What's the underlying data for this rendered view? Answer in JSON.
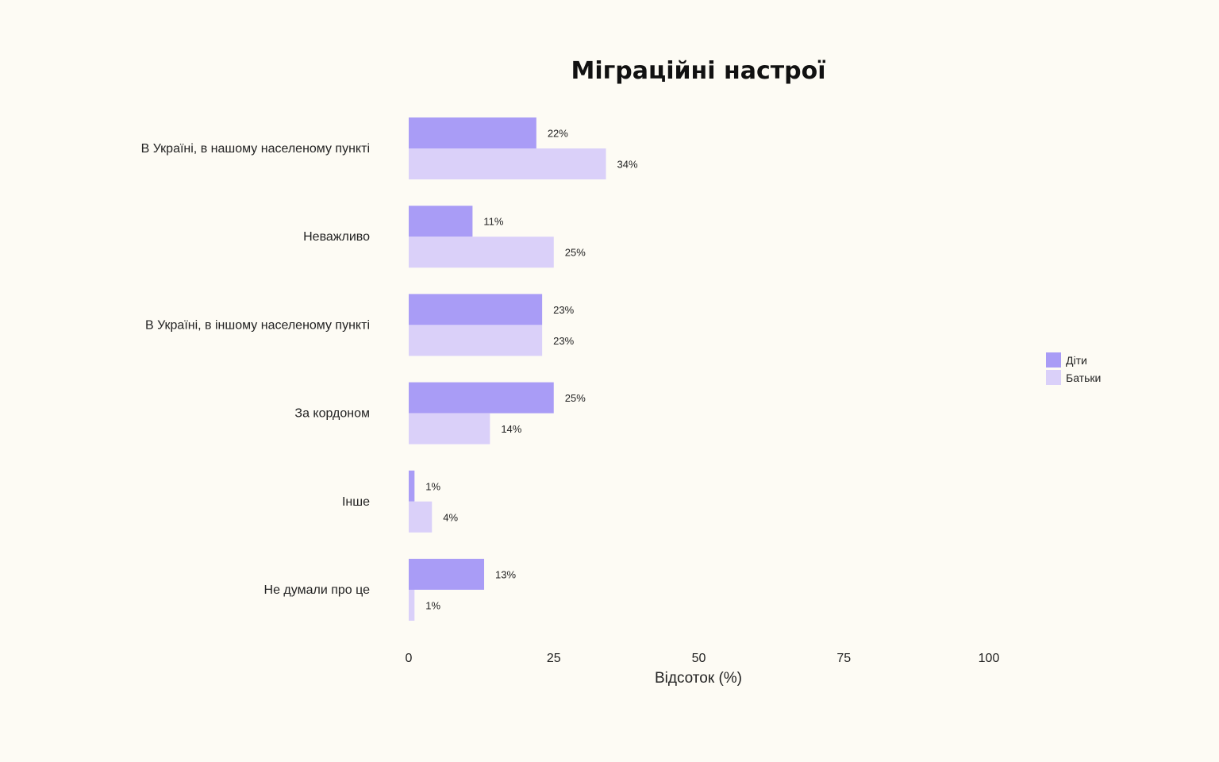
{
  "chart_data": {
    "type": "bar",
    "orientation": "horizontal",
    "title": "Міграційні настрої",
    "xlabel": "Відсоток (%)",
    "ylabel": "",
    "xlim": [
      0,
      100
    ],
    "x_ticks": [
      "0",
      "25",
      "50",
      "75",
      "100"
    ],
    "x_tick_values": [
      0,
      25,
      50,
      75,
      100
    ],
    "grid": false,
    "legend_position": "right",
    "categories": [
      "В Україні, в нашому населеному пункті",
      "Неважливо",
      "В Україні, в іншому населеному пункті",
      "За кордоном",
      "Інше",
      "Не думали про це"
    ],
    "series": [
      {
        "name": "Діти",
        "color": "#a99cf6",
        "values": [
          22,
          11,
          23,
          25,
          1,
          13
        ],
        "labels": [
          "22%",
          "11%",
          "23%",
          "25%",
          "1%",
          "13%"
        ]
      },
      {
        "name": "Батьки",
        "color": "#dad0f9",
        "values": [
          34,
          25,
          23,
          14,
          4,
          1
        ],
        "labels": [
          "34%",
          "25%",
          "23%",
          "14%",
          "4%",
          "1%"
        ]
      }
    ]
  }
}
